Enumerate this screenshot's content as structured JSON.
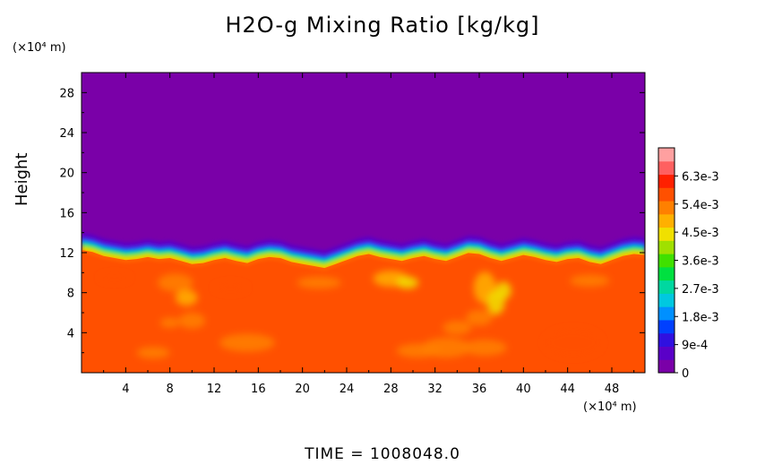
{
  "chart_data": {
    "type": "heatmap",
    "title": "H2O-g Mixing Ratio [kg/kg]",
    "xlabel": "",
    "ylabel": "Height",
    "x_unit": "(×10⁴ m)",
    "y_unit": "(×10⁴ m)",
    "xlim": [
      0,
      51
    ],
    "ylim": [
      0,
      30
    ],
    "xticks": [
      4,
      8,
      12,
      16,
      20,
      24,
      28,
      32,
      36,
      40,
      44,
      48
    ],
    "yticks": [
      4,
      8,
      12,
      16,
      20,
      24,
      28
    ],
    "colorbar": {
      "range": [
        0,
        0.0072
      ],
      "tick_values": [
        0,
        0.0009,
        0.0018,
        0.0027,
        0.0036,
        0.0045,
        0.0054,
        0.0063
      ],
      "tick_labels": [
        "0",
        "9e-4",
        "1.8e-3",
        "2.7e-3",
        "3.6e-3",
        "4.5e-3",
        "5.4e-3",
        "6.3e-3"
      ],
      "colors": [
        "#7a00a8",
        "#5a00c8",
        "#3010e0",
        "#0040ff",
        "#0090ff",
        "#00c8e0",
        "#00d8a0",
        "#00e040",
        "#40e000",
        "#a0e000",
        "#f0e000",
        "#ffb000",
        "#ff8000",
        "#ff5000",
        "#ff2000",
        "#ff6060",
        "#ffa0a0"
      ]
    },
    "interface_height": [
      12.4,
      12.2,
      11.8,
      11.6,
      11.4,
      11.5,
      11.7,
      11.5,
      11.6,
      11.3,
      11.0,
      11.1,
      11.4,
      11.6,
      11.3,
      11.1,
      11.5,
      11.7,
      11.6,
      11.2,
      11.0,
      10.8,
      10.6,
      11.0,
      11.4,
      11.8,
      12.0,
      11.7,
      11.5,
      11.3,
      11.6,
      11.8,
      11.5,
      11.3,
      11.7,
      12.1,
      12.0,
      11.6,
      11.3,
      11.6,
      11.9,
      11.7,
      11.4,
      11.2,
      11.5,
      11.6,
      11.2,
      11.0,
      11.4,
      11.8,
      12.0,
      11.9
    ],
    "lower_layer_value": 0.0059,
    "upper_layer_value": 0.0
  },
  "time_label": "TIME  =  1008048.0"
}
